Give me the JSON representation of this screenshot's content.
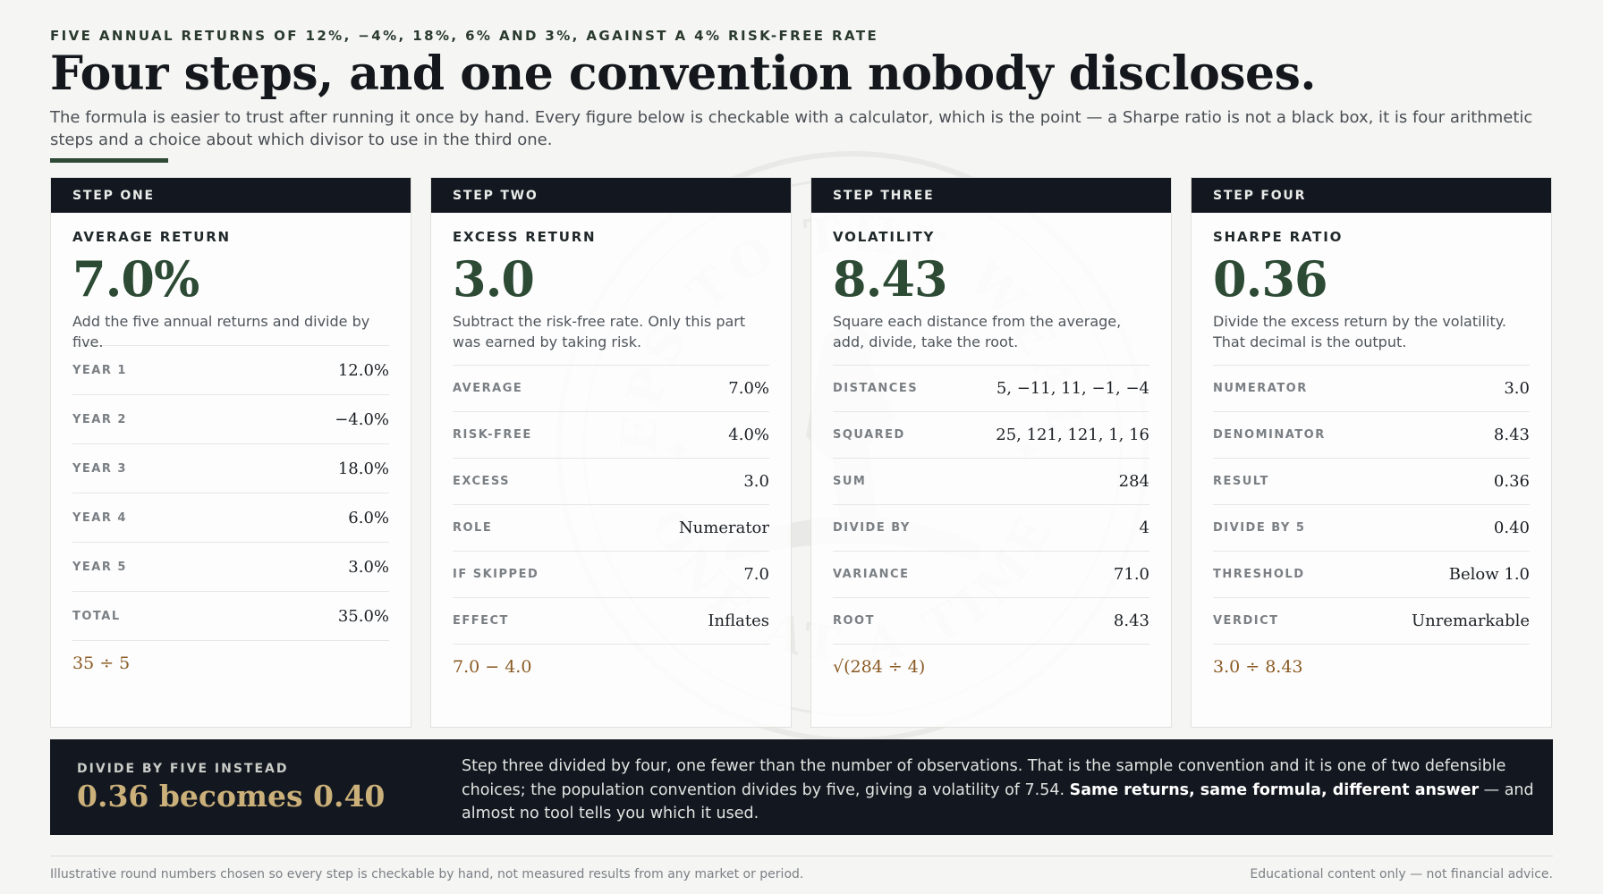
{
  "header": {
    "eyebrow": "FIVE ANNUAL RETURNS OF 12%, −4%, 18%, 6% AND 3%, AGAINST A 4% RISK-FREE RATE",
    "title": "Four steps, and one convention nobody discloses.",
    "intro": "The formula is easier to trust after running it once by hand. Every figure below is checkable with a calculator, which is the point — a Sharpe ratio is not a black box, it is four arithmetic steps and a choice about which divisor to use in the third one."
  },
  "watermark": {
    "text_top": "STEPS TO THE WEALTH",
    "text_bottom": "ONE AT A TIME"
  },
  "cards": [
    {
      "step": "STEP ONE",
      "label": "AVERAGE RETURN",
      "value": "7.0%",
      "description": "Add the five annual returns and divide by five.",
      "rows": [
        {
          "key": "YEAR 1",
          "value": "12.0%"
        },
        {
          "key": "YEAR 2",
          "value": "−4.0%"
        },
        {
          "key": "YEAR 3",
          "value": "18.0%"
        },
        {
          "key": "YEAR 4",
          "value": "6.0%"
        },
        {
          "key": "YEAR 5",
          "value": "3.0%"
        },
        {
          "key": "TOTAL",
          "value": "35.0%"
        }
      ],
      "formula": "35 ÷ 5"
    },
    {
      "step": "STEP TWO",
      "label": "EXCESS RETURN",
      "value": "3.0",
      "description": "Subtract the risk-free rate. Only this part was earned by taking risk.",
      "rows": [
        {
          "key": "AVERAGE",
          "value": "7.0%"
        },
        {
          "key": "RISK-FREE",
          "value": "4.0%"
        },
        {
          "key": "EXCESS",
          "value": "3.0"
        },
        {
          "key": "ROLE",
          "value": "Numerator"
        },
        {
          "key": "IF SKIPPED",
          "value": "7.0"
        },
        {
          "key": "EFFECT",
          "value": "Inflates"
        }
      ],
      "formula": "7.0 − 4.0"
    },
    {
      "step": "STEP THREE",
      "label": "VOLATILITY",
      "value": "8.43",
      "description": "Square each distance from the average, add, divide, take the root.",
      "rows": [
        {
          "key": "DISTANCES",
          "value": "5, −11, 11, −1, −4"
        },
        {
          "key": "SQUARED",
          "value": "25, 121, 121, 1, 16"
        },
        {
          "key": "SUM",
          "value": "284"
        },
        {
          "key": "DIVIDE BY",
          "value": "4"
        },
        {
          "key": "VARIANCE",
          "value": "71.0"
        },
        {
          "key": "ROOT",
          "value": "8.43"
        }
      ],
      "formula": "√(284 ÷ 4)"
    },
    {
      "step": "STEP FOUR",
      "label": "SHARPE RATIO",
      "value": "0.36",
      "description": "Divide the excess return by the volatility. That decimal is the output.",
      "rows": [
        {
          "key": "NUMERATOR",
          "value": "3.0"
        },
        {
          "key": "DENOMINATOR",
          "value": "8.43"
        },
        {
          "key": "RESULT",
          "value": "0.36"
        },
        {
          "key": "DIVIDE BY 5",
          "value": "0.40"
        },
        {
          "key": "THRESHOLD",
          "value": "Below 1.0"
        },
        {
          "key": "VERDICT",
          "value": "Unremarkable"
        }
      ],
      "formula": "3.0 ÷ 8.43"
    }
  ],
  "banner": {
    "eyebrow": "DIVIDE BY FIVE INSTEAD",
    "headline": "0.36 becomes 0.40",
    "text_before": "Step three divided by four, one fewer than the number of observations. That is the sample convention and it is one of two defensible choices; the population convention divides by five, giving a volatility of 7.54. ",
    "text_bold": "Same returns, same formula, different answer",
    "text_after": " — and almost no tool tells you which it used."
  },
  "footer": {
    "left": "Illustrative round numbers chosen so every step is checkable by hand, not measured results from any market or period.",
    "right": "Educational content only — not financial advice."
  },
  "colors": {
    "background": "#f5f5f3",
    "ink": "#14181d",
    "accent_green": "#2c4a34",
    "dark_panel": "#131820",
    "formula_brown": "#8a5a23",
    "banner_gold": "#cbb07a"
  }
}
